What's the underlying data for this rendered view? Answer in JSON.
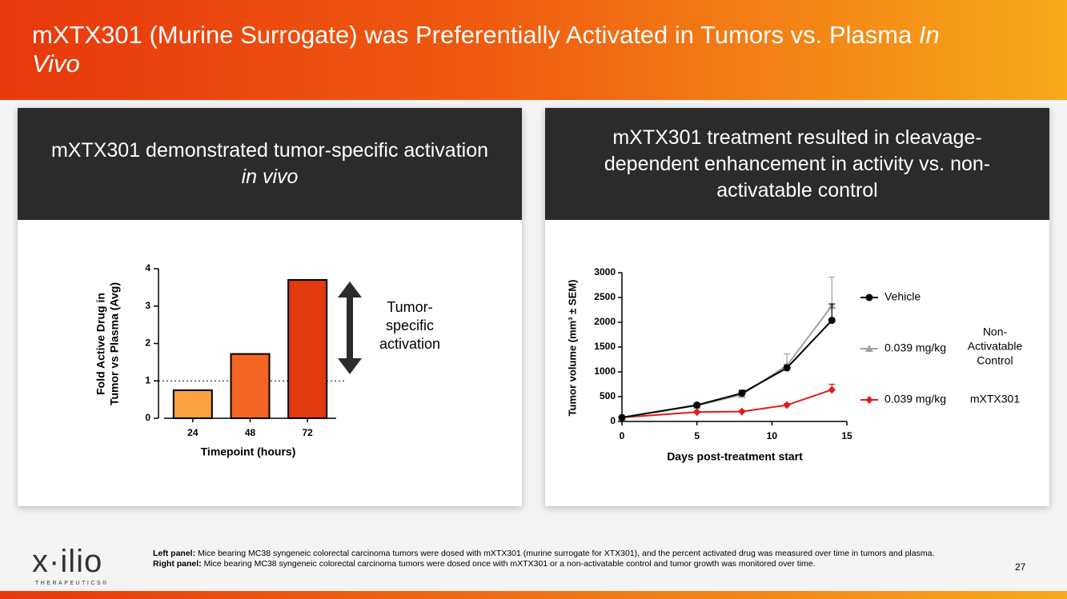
{
  "title": {
    "text": "mXTX301 (Murine Surrogate) was Preferentially Activated in Tumors vs. Plasma ",
    "italic": "In Vivo"
  },
  "panels": [
    {
      "header": "mXTX301 demonstrated tumor-specific activation ",
      "header_italic": "in vivo"
    },
    {
      "header": "mXTX301 treatment resulted in cleavage-dependent enhancement in activity vs. non-activatable control"
    }
  ],
  "chart_data": [
    {
      "type": "bar",
      "categories": [
        "24",
        "48",
        "72"
      ],
      "values": [
        0.75,
        1.72,
        3.7
      ],
      "colors": [
        "#f9a040",
        "#f26522",
        "#e03a0e"
      ],
      "ylim": [
        0,
        4
      ],
      "yticks": [
        0,
        1,
        2,
        3,
        4
      ],
      "reference_line": 1,
      "ylabel": [
        "Fold Active Drug in",
        "Tumor vs Plasma (Avg)"
      ],
      "xlabel": "Timepoint (hours)",
      "annotation": [
        "Tumor-",
        "specific",
        "activation"
      ]
    },
    {
      "type": "line",
      "x": [
        0,
        5,
        8,
        11,
        14
      ],
      "xlim": [
        0,
        15
      ],
      "xticks": [
        0,
        5,
        10,
        15
      ],
      "ylim": [
        0,
        3000
      ],
      "yticks": [
        0,
        500,
        1000,
        1500,
        2000,
        2500,
        3000
      ],
      "ylabel": "Tumor volume (mm³ ± SEM)",
      "xlabel": "Days post-treatment start",
      "series": [
        {
          "name": "Vehicle",
          "color": "#000000",
          "marker": "circle",
          "values": [
            80,
            330,
            570,
            1080,
            2040
          ],
          "errors": [
            10,
            40,
            60,
            60,
            330
          ]
        },
        {
          "name": "0.039 mg/kg",
          "color": "#a0a0a0",
          "marker": "triangle",
          "values": [
            80,
            320,
            540,
            1130,
            2330
          ],
          "errors": [
            10,
            30,
            40,
            230,
            580
          ],
          "group_label": [
            "Non-",
            "Activatable",
            "Control"
          ]
        },
        {
          "name": "0.039 mg/kg",
          "color": "#e31a1c",
          "marker": "diamond",
          "values": [
            80,
            190,
            200,
            330,
            640
          ],
          "errors": [
            10,
            20,
            20,
            30,
            110
          ],
          "group_label": [
            "mXTX301"
          ]
        }
      ]
    }
  ],
  "footnotes": [
    {
      "label": "Left panel:",
      "text": " Mice bearing MC38 syngeneic colorectal carcinoma tumors were dosed with mXTX301 (murine surrogate for XTX301), and the percent activated drug was measured over time in tumors and plasma."
    },
    {
      "label": "Right panel:",
      "text": " Mice bearing MC38 syngeneic colorectal carcinoma tumors were dosed once with mXTX301 or a non-activatable control and tumor growth was monitored over time."
    }
  ],
  "logo": {
    "name": "x·ilio",
    "tagline": "THERAPEUTICS®"
  },
  "page_number": "27"
}
